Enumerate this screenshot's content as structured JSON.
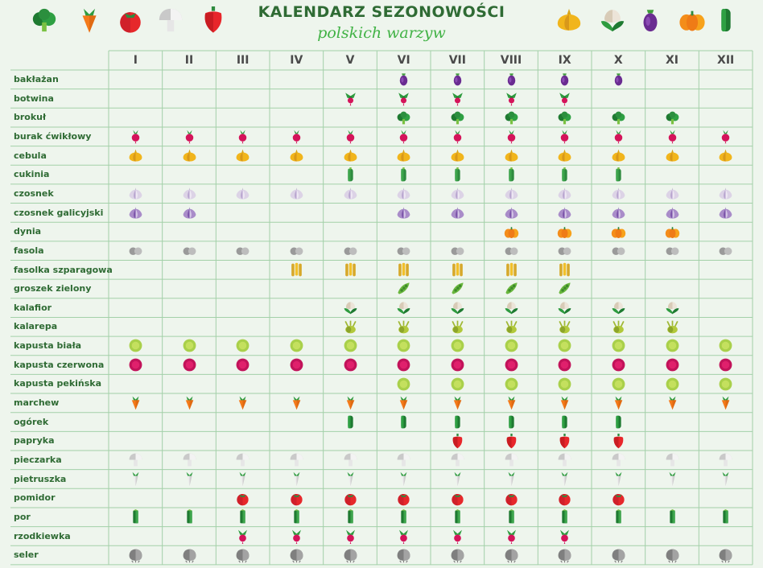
{
  "title": "KALENDARZ SEZONOWOŚCI",
  "subtitle": "polskich warzyw",
  "header_icons_left": [
    "broccoli-icon",
    "carrot-icon",
    "tomato-icon",
    "mushroom-icon",
    "pepper-icon"
  ],
  "header_icons_right": [
    "onion-icon",
    "cauliflower-icon",
    "eggplant-icon",
    "pumpkin-icon",
    "cucumber-icon"
  ],
  "months": [
    "I",
    "II",
    "III",
    "IV",
    "V",
    "VI",
    "VII",
    "VIII",
    "IX",
    "X",
    "XI",
    "XII"
  ],
  "colors": {
    "background": "#eef5ed",
    "grid": "#a3d0a8",
    "title": "#2f6b34",
    "subtitle": "#41b245",
    "label": "#2f6b34"
  },
  "rows": [
    {
      "name": "bakłażan",
      "icon": "eggplant",
      "months": [
        6,
        7,
        8,
        9,
        10
      ]
    },
    {
      "name": "botwina",
      "icon": "beet-leaves",
      "months": [
        5,
        6,
        7,
        8,
        9
      ]
    },
    {
      "name": "brokuł",
      "icon": "broccoli",
      "months": [
        6,
        7,
        8,
        9,
        10,
        11
      ]
    },
    {
      "name": "burak ćwikłowy",
      "icon": "beet",
      "months": [
        1,
        2,
        3,
        4,
        5,
        6,
        7,
        8,
        9,
        10,
        11,
        12
      ]
    },
    {
      "name": "cebula",
      "icon": "onion",
      "months": [
        1,
        2,
        3,
        4,
        5,
        6,
        7,
        8,
        9,
        10,
        11,
        12
      ]
    },
    {
      "name": "cukinia",
      "icon": "zucchini",
      "months": [
        5,
        6,
        7,
        8,
        9,
        10
      ]
    },
    {
      "name": "czosnek",
      "icon": "garlic",
      "months": [
        1,
        2,
        3,
        4,
        5,
        6,
        7,
        8,
        9,
        10,
        11,
        12
      ]
    },
    {
      "name": "czosnek galicyjski",
      "icon": "purple-garlic",
      "months": [
        1,
        2,
        6,
        7,
        8,
        9,
        10,
        11,
        12
      ]
    },
    {
      "name": "dynia",
      "icon": "pumpkin",
      "months": [
        8,
        9,
        10,
        11
      ]
    },
    {
      "name": "fasola",
      "icon": "bean",
      "months": [
        1,
        2,
        3,
        4,
        5,
        6,
        7,
        8,
        9,
        10,
        11,
        12
      ]
    },
    {
      "name": "fasolka szparagowa",
      "icon": "green-beans",
      "months": [
        4,
        5,
        6,
        7,
        8,
        9
      ]
    },
    {
      "name": "groszek zielony",
      "icon": "peas",
      "months": [
        6,
        7,
        8,
        9
      ]
    },
    {
      "name": "kalafior",
      "icon": "cauliflower",
      "months": [
        5,
        6,
        7,
        8,
        9,
        10,
        11
      ]
    },
    {
      "name": "kalarepa",
      "icon": "kohlrabi",
      "months": [
        5,
        6,
        7,
        8,
        9,
        10,
        11
      ]
    },
    {
      "name": "kapusta biała",
      "icon": "white-cabbage",
      "months": [
        1,
        2,
        3,
        4,
        5,
        6,
        7,
        8,
        9,
        10,
        11,
        12
      ]
    },
    {
      "name": "kapusta czerwona",
      "icon": "red-cabbage",
      "months": [
        1,
        2,
        3,
        4,
        5,
        6,
        7,
        8,
        9,
        10,
        11,
        12
      ]
    },
    {
      "name": "kapusta pekińska",
      "icon": "chinese-cabbage",
      "months": [
        6,
        7,
        8,
        9,
        10,
        11,
        12
      ]
    },
    {
      "name": "marchew",
      "icon": "carrot",
      "months": [
        1,
        2,
        3,
        4,
        5,
        6,
        7,
        8,
        9,
        10,
        11,
        12
      ]
    },
    {
      "name": "ogórek",
      "icon": "cucumber",
      "months": [
        5,
        6,
        7,
        8,
        9,
        10
      ]
    },
    {
      "name": "papryka",
      "icon": "pepper",
      "months": [
        7,
        8,
        9,
        10
      ]
    },
    {
      "name": "pieczarka",
      "icon": "mushroom",
      "months": [
        1,
        2,
        3,
        4,
        5,
        6,
        7,
        8,
        9,
        10,
        11,
        12
      ]
    },
    {
      "name": "pietruszka",
      "icon": "parsley-root",
      "months": [
        1,
        2,
        3,
        4,
        5,
        6,
        7,
        8,
        9,
        10,
        11,
        12
      ]
    },
    {
      "name": "pomidor",
      "icon": "tomato",
      "months": [
        3,
        4,
        5,
        6,
        7,
        8,
        9,
        10
      ]
    },
    {
      "name": "por",
      "icon": "leek",
      "months": [
        1,
        2,
        3,
        4,
        5,
        6,
        7,
        8,
        9,
        10,
        11,
        12
      ]
    },
    {
      "name": "rzodkiewka",
      "icon": "radish",
      "months": [
        3,
        4,
        5,
        6,
        7,
        8,
        9
      ]
    },
    {
      "name": "seler",
      "icon": "celeriac",
      "months": [
        1,
        2,
        3,
        4,
        5,
        6,
        7,
        8,
        9,
        10,
        11,
        12
      ]
    }
  ]
}
